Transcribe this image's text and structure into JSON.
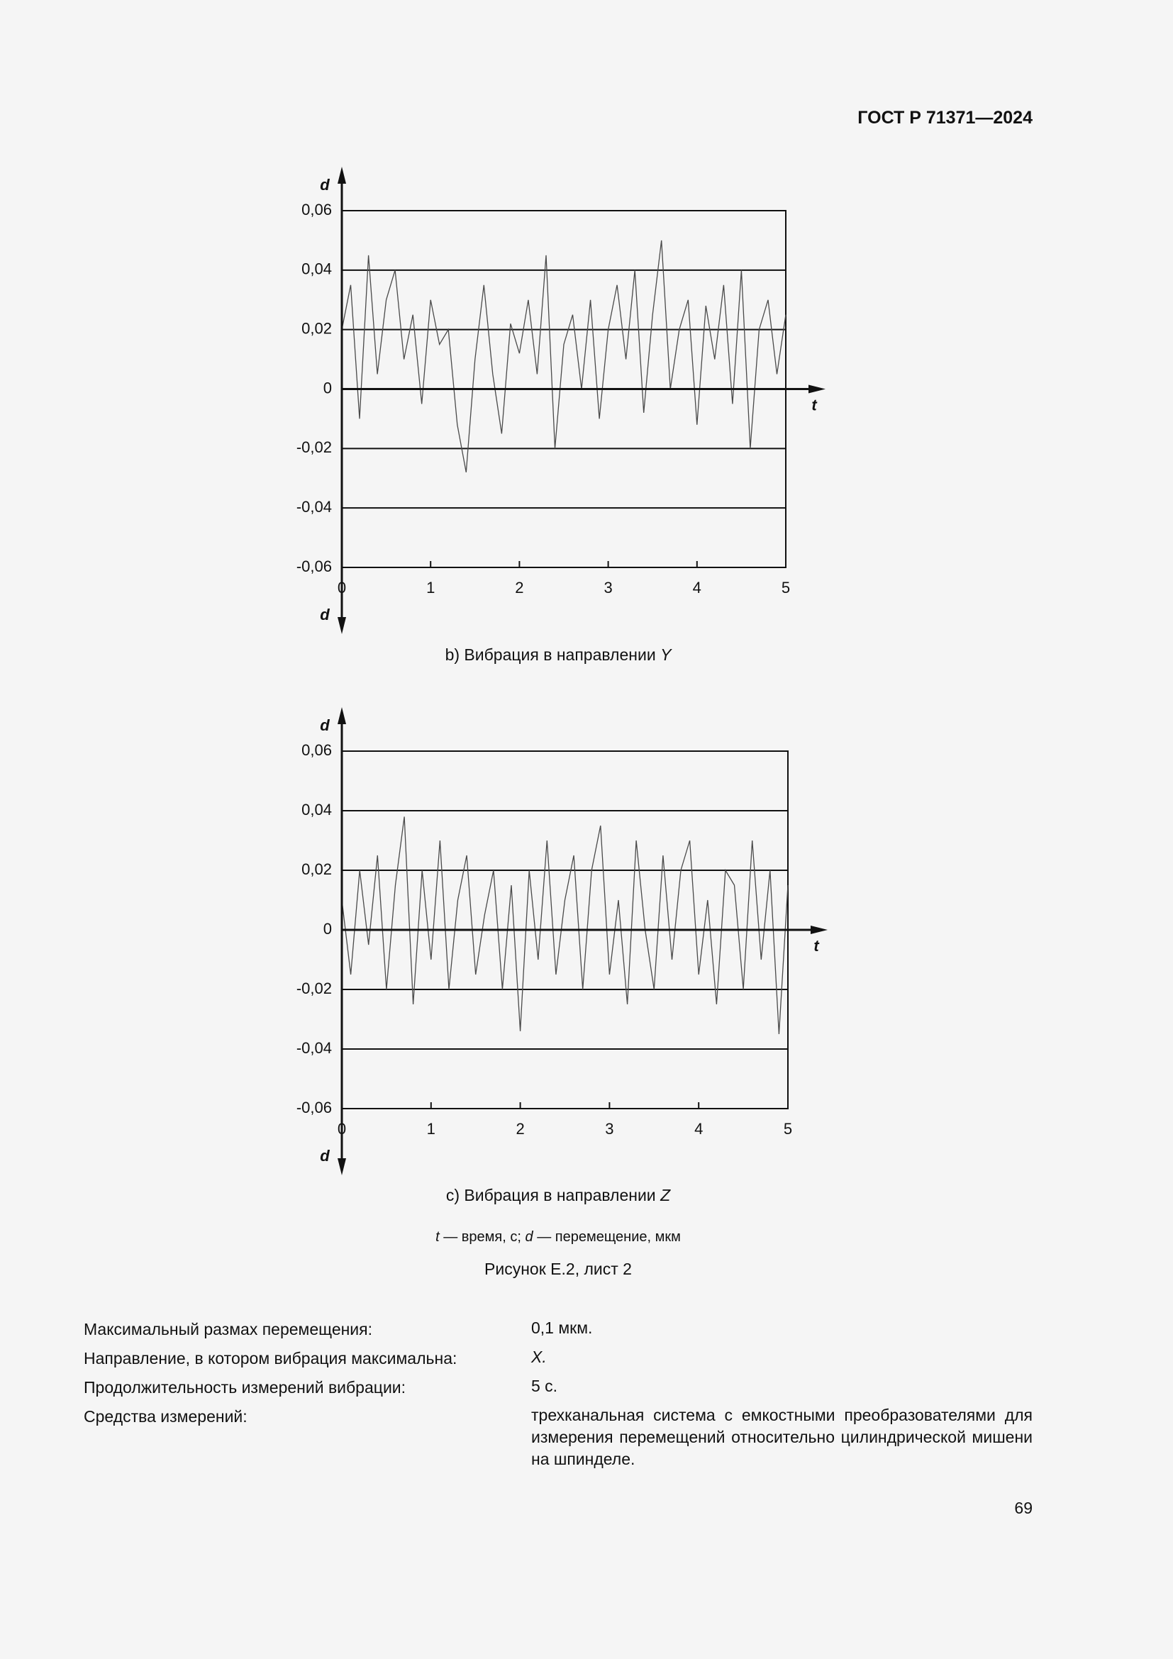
{
  "header": {
    "standard": "ГОСТ Р 71371—2024"
  },
  "chart_data": [
    {
      "type": "line",
      "ylabel": "d",
      "xlabel": "t",
      "caption": "b) Вибрация в направлении",
      "caption_axis": "Y",
      "color": "#4a4a4a",
      "grid": true,
      "xlim": [
        0,
        5
      ],
      "xticks": [
        0,
        1,
        2,
        3,
        4,
        5
      ],
      "ylim": [
        -0.06,
        0.06
      ],
      "yticks": [
        {
          "value": -0.06,
          "label": "-0,06"
        },
        {
          "value": -0.04,
          "label": "-0,04"
        },
        {
          "value": -0.02,
          "label": "-0,02"
        },
        0,
        {
          "value": 0.02,
          "label": "0,02"
        },
        {
          "value": 0.04,
          "label": "0,04"
        },
        {
          "value": 0.06,
          "label": "0,06"
        }
      ],
      "x": [
        0,
        0.1,
        0.2,
        0.3,
        0.4,
        0.5,
        0.6,
        0.7,
        0.8,
        0.9,
        1,
        1.1,
        1.2,
        1.3,
        1.4,
        1.5,
        1.6,
        1.7,
        1.8,
        1.9,
        2,
        2.1,
        2.2,
        2.3,
        2.4,
        2.5,
        2.6,
        2.7,
        2.8,
        2.9,
        3,
        3.1,
        3.2,
        3.3,
        3.4,
        3.5,
        3.6,
        3.7,
        3.8,
        3.9,
        4,
        4.1,
        4.2,
        4.3,
        4.4,
        4.5,
        4.6,
        4.7,
        4.8,
        4.9,
        5
      ],
      "values": [
        0.02,
        0.035,
        -0.01,
        0.045,
        0.005,
        0.03,
        0.04,
        0.01,
        0.025,
        -0.005,
        0.03,
        0.015,
        0.02,
        -0.012,
        -0.028,
        0.01,
        0.035,
        0.005,
        -0.015,
        0.022,
        0.012,
        0.03,
        0.005,
        0.045,
        -0.02,
        0.015,
        0.025,
        0.0,
        0.03,
        -0.01,
        0.02,
        0.035,
        0.01,
        0.04,
        -0.008,
        0.025,
        0.05,
        0.0,
        0.02,
        0.03,
        -0.012,
        0.028,
        0.01,
        0.035,
        -0.005,
        0.04,
        -0.02,
        0.02,
        0.03,
        0.005,
        0.025
      ]
    },
    {
      "type": "line",
      "ylabel": "d",
      "xlabel": "t",
      "caption": "с) Вибрация в направлении",
      "caption_axis": "Z",
      "color": "#4a4a4a",
      "grid": true,
      "xlim": [
        0,
        5
      ],
      "xticks": [
        0,
        1,
        2,
        3,
        4,
        5
      ],
      "ylim": [
        -0.06,
        0.06
      ],
      "yticks": [
        {
          "value": -0.06,
          "label": "-0,06"
        },
        {
          "value": -0.04,
          "label": "-0,04"
        },
        {
          "value": -0.02,
          "label": "-0,02"
        },
        0,
        {
          "value": 0.02,
          "label": "0,02"
        },
        {
          "value": 0.04,
          "label": "0,04"
        },
        {
          "value": 0.06,
          "label": "0,06"
        }
      ],
      "x": [
        0,
        0.1,
        0.2,
        0.3,
        0.4,
        0.5,
        0.6,
        0.7,
        0.8,
        0.9,
        1,
        1.1,
        1.2,
        1.3,
        1.4,
        1.5,
        1.6,
        1.7,
        1.8,
        1.9,
        2,
        2.1,
        2.2,
        2.3,
        2.4,
        2.5,
        2.6,
        2.7,
        2.8,
        2.9,
        3,
        3.1,
        3.2,
        3.3,
        3.4,
        3.5,
        3.6,
        3.7,
        3.8,
        3.9,
        4,
        4.1,
        4.2,
        4.3,
        4.4,
        4.5,
        4.6,
        4.7,
        4.8,
        4.9,
        5
      ],
      "values": [
        0.01,
        -0.015,
        0.02,
        -0.005,
        0.025,
        -0.02,
        0.015,
        0.038,
        -0.025,
        0.02,
        -0.01,
        0.03,
        -0.02,
        0.01,
        0.025,
        -0.015,
        0.005,
        0.02,
        -0.02,
        0.015,
        -0.034,
        0.02,
        -0.01,
        0.03,
        -0.015,
        0.01,
        0.025,
        -0.02,
        0.02,
        0.035,
        -0.015,
        0.01,
        -0.025,
        0.03,
        0.0,
        -0.02,
        0.025,
        -0.01,
        0.02,
        0.03,
        -0.015,
        0.01,
        -0.025,
        0.02,
        0.015,
        -0.02,
        0.03,
        -0.01,
        0.02,
        -0.035,
        0.015
      ]
    }
  ],
  "note": [
    {
      "symbol": "t",
      "text": "— время, с;"
    },
    {
      "symbol": "d",
      "text": "— перемещение, мкм"
    }
  ],
  "figure_caption": "Рисунок Е.2, лист 2",
  "details": [
    [
      "Максимальный размах перемещения:",
      "0,1 мкм."
    ],
    [
      "Направление, в котором вибрация максимальна:",
      "X."
    ],
    [
      "Продолжительность измерений вибрации:",
      "5 с."
    ],
    [
      "Средства измерений:",
      "трехканальная система с емкостными преобразователями для измерения перемещений относительно цилиндрической мишени на шпинделе."
    ]
  ],
  "page_number": "69"
}
